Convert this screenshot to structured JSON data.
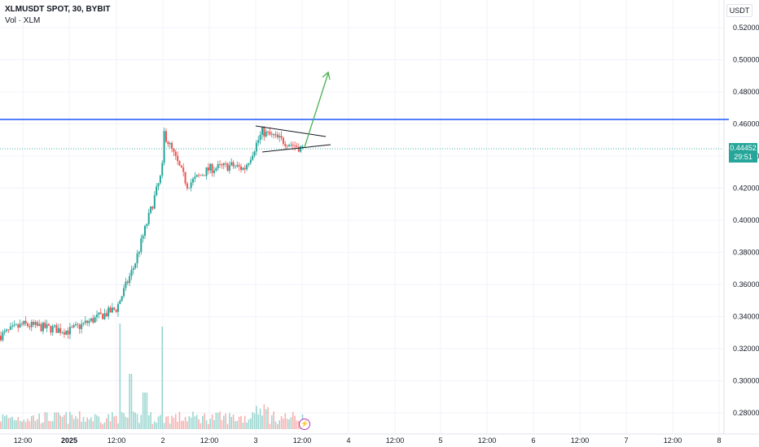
{
  "header": {
    "title": "XLMUSDT SPOT, 30, BYBIT",
    "volume_label": "Vol · XLM"
  },
  "price_axis": {
    "unit": "USDT",
    "current_price": "0.44452",
    "countdown": "29:51"
  },
  "colors": {
    "up": "#26a69a",
    "down": "#ef5350",
    "resistance": "#2962ff",
    "arrow": "#4caf50",
    "grid": "#f0f3fa"
  },
  "icons": {
    "event_marker": "lightning-icon"
  },
  "chart_data": {
    "type": "candlestick",
    "symbol": "XLMUSDT",
    "interval": "30",
    "exchange": "BYBIT",
    "x_ticks": [
      "12:00",
      "2025",
      "12:00",
      "2",
      "12:00",
      "3",
      "12:00",
      "4",
      "12:00",
      "5",
      "12:00",
      "6",
      "12:00",
      "7",
      "12:00",
      "8"
    ],
    "y_ticks": [
      "0.52000",
      "0.50000",
      "0.48000",
      "0.46000",
      "0.44000",
      "0.42000",
      "0.40000",
      "0.38000",
      "0.36000",
      "0.34000",
      "0.32000",
      "0.30000",
      "0.28000"
    ],
    "ylim": [
      0.274,
      0.53
    ],
    "grid": true,
    "current_price": 0.44452,
    "resistance_level": 0.4628,
    "approx_close_path": [
      {
        "x": "Jan 1 00:00",
        "y": 0.333
      },
      {
        "x": "Jan 1 06:00",
        "y": 0.331
      },
      {
        "x": "Jan 1 12:00",
        "y": 0.345
      },
      {
        "x": "Jan 1 18:00",
        "y": 0.372
      },
      {
        "x": "Jan 1 21:00",
        "y": 0.405
      },
      {
        "x": "Jan 2 00:00",
        "y": 0.435
      },
      {
        "x": "Jan 2 01:00",
        "y": 0.455
      },
      {
        "x": "Jan 2 06:00",
        "y": 0.422
      },
      {
        "x": "Jan 2 12:00",
        "y": 0.432
      },
      {
        "x": "Jan 2 18:00",
        "y": 0.433
      },
      {
        "x": "Jan 2 21:00",
        "y": 0.441
      },
      {
        "x": "Jan 3 00:00",
        "y": 0.432
      },
      {
        "x": "Jan 3 03:00",
        "y": 0.455
      },
      {
        "x": "Jan 3 08:00",
        "y": 0.45
      },
      {
        "x": "Jan 3 12:00",
        "y": 0.4445
      }
    ],
    "volume_spikes": [
      {
        "x": "Jan 1 18:00",
        "relative": 0.92
      },
      {
        "x": "Jan 2 00:00",
        "relative": 0.89
      },
      {
        "x": "Jan 1 19:30",
        "relative": 0.48
      }
    ],
    "annotations": [
      {
        "type": "horizontal_line",
        "price": 0.4628
      },
      {
        "type": "symmetrical_triangle",
        "from": "Jan 3 00:00",
        "to": "Jan 3 15:00"
      },
      {
        "type": "arrow",
        "direction": "up",
        "target": 0.493
      }
    ]
  }
}
